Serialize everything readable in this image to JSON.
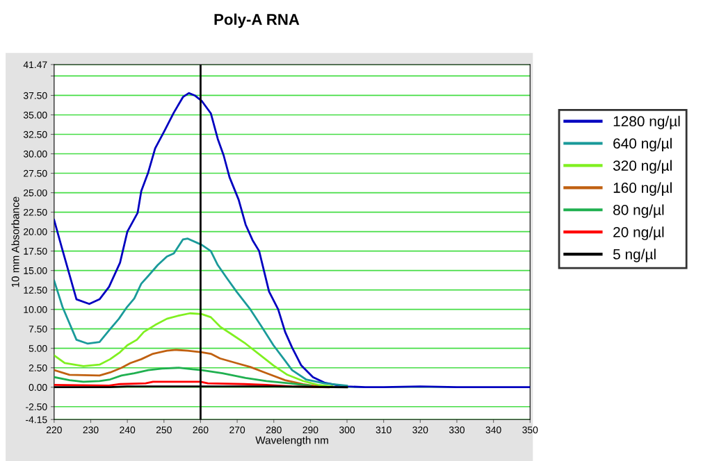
{
  "chart_data": {
    "type": "line",
    "title": "Poly-A RNA",
    "xlabel": "Wavelength nm",
    "ylabel": "10 mm Absorbance",
    "xlim": [
      220,
      350
    ],
    "xticks": [
      220,
      230,
      240,
      250,
      260,
      270,
      280,
      290,
      300,
      310,
      320,
      330,
      340,
      350
    ],
    "ylim": [
      -4.15,
      41.47
    ],
    "yticks": [
      {
        "value": -4.15,
        "label": "-4.15"
      },
      {
        "value": -2.5,
        "label": "-2.50"
      },
      {
        "value": 0,
        "label": "0.00"
      },
      {
        "value": 2.5,
        "label": "2.50"
      },
      {
        "value": 5,
        "label": "5.00"
      },
      {
        "value": 7.5,
        "label": "7.50"
      },
      {
        "value": 10,
        "label": "10.00"
      },
      {
        "value": 12.5,
        "label": "12.50"
      },
      {
        "value": 15,
        "label": "15.00"
      },
      {
        "value": 17.5,
        "label": "17.50"
      },
      {
        "value": 20,
        "label": "20.00"
      },
      {
        "value": 22.5,
        "label": "22.50"
      },
      {
        "value": 25,
        "label": "25.00"
      },
      {
        "value": 27.5,
        "label": "27.50"
      },
      {
        "value": 30,
        "label": "30.00"
      },
      {
        "value": 32.5,
        "label": "32.50"
      },
      {
        "value": 35,
        "label": "35.00"
      },
      {
        "value": 37.5,
        "label": "37.50"
      },
      {
        "value": 40,
        "label": null
      },
      {
        "value": 41.47,
        "label": "41.47"
      }
    ],
    "grid": "y",
    "legend": "right",
    "marker": "none",
    "line_style": "solid",
    "ref_lines": [
      {
        "axis": "x",
        "value": 260,
        "color": "#000000"
      }
    ],
    "series": [
      {
        "name": "1280 ng/µl",
        "color": "#0000c0",
        "x": [
          220,
          222,
          226.1,
          229.6,
          232.4,
          235,
          238,
          240,
          242.8,
          243.8,
          245.7,
          247.6,
          250.2,
          252.7,
          255.2,
          256.8,
          258.4,
          260.3,
          262.8,
          264.7,
          266.3,
          267.9,
          270.4,
          272.3,
          274.2,
          276,
          278.7,
          281.2,
          283.1,
          285,
          287.5,
          290.7,
          293.8,
          296.9,
          300,
          305,
          310,
          320,
          330,
          340,
          350
        ],
        "values": [
          21.5,
          18.1,
          11.3,
          10.7,
          11.3,
          12.9,
          16,
          20,
          22.4,
          25.2,
          27.6,
          30.7,
          33,
          35.3,
          37.3,
          37.8,
          37.5,
          36.8,
          35.2,
          31.9,
          29.8,
          27,
          24.1,
          20.9,
          18.9,
          17.5,
          12.3,
          10,
          7.1,
          5.1,
          2.8,
          1.3,
          0.6,
          0.3,
          0.1,
          0,
          0,
          0.1,
          0,
          0,
          0
        ]
      },
      {
        "name": "640 ng/µl",
        "color": "#1a9a9a",
        "x": [
          220,
          222.3,
          226.1,
          229.2,
          232.4,
          235,
          237.7,
          239.9,
          241.9,
          243.8,
          245.7,
          248.3,
          250.8,
          252.7,
          255.2,
          256.5,
          260.3,
          262.8,
          264.7,
          267.2,
          269.8,
          273.6,
          276.8,
          279.9,
          283.1,
          285,
          288.8,
          293.8,
          300
        ],
        "values": [
          13.7,
          10.3,
          6.1,
          5.6,
          5.8,
          7.3,
          8.8,
          10.3,
          11.4,
          13.3,
          14.3,
          15.7,
          16.8,
          17.2,
          19,
          19.1,
          18.3,
          17.5,
          15.7,
          14,
          12.3,
          10,
          7.7,
          5.4,
          3.4,
          2.2,
          1,
          0.5,
          0.2
        ]
      },
      {
        "name": "320 ng/µl",
        "color": "#80f020",
        "x": [
          220,
          222.9,
          228,
          232.4,
          235.3,
          238,
          240,
          242.6,
          244.5,
          247.6,
          250.8,
          254,
          257.1,
          260.3,
          262.8,
          265.3,
          268.5,
          272.3,
          276.1,
          279.9,
          283.7,
          288,
          292,
          296
        ],
        "values": [
          4.1,
          3.1,
          2.7,
          2.9,
          3.6,
          4.5,
          5.4,
          6.1,
          7.1,
          8,
          8.8,
          9.2,
          9.5,
          9.4,
          9,
          7.8,
          6.8,
          5.6,
          4.2,
          2.8,
          1.6,
          0.8,
          0.3,
          0.1
        ]
      },
      {
        "name": "160 ng/µl",
        "color": "#c06010",
        "x": [
          220,
          224.2,
          232.4,
          235.3,
          238.4,
          240.8,
          243.8,
          247,
          250.8,
          253.3,
          256.5,
          260.3,
          262.8,
          265.3,
          269.8,
          273.6,
          278,
          283.1,
          288,
          292
        ],
        "values": [
          2.2,
          1.6,
          1.5,
          1.9,
          2.5,
          3.1,
          3.6,
          4.3,
          4.7,
          4.8,
          4.7,
          4.5,
          4.3,
          3.7,
          3.1,
          2.6,
          1.8,
          0.9,
          0.4,
          0.1
        ]
      },
      {
        "name": "80 ng/µl",
        "color": "#20b050",
        "x": [
          220,
          224.2,
          228,
          232.4,
          235.3,
          238.4,
          241.9,
          245.7,
          249.5,
          254,
          257.8,
          260.3,
          266,
          272.3,
          278,
          284.3,
          290
        ],
        "values": [
          1.3,
          0.9,
          0.7,
          0.8,
          1,
          1.5,
          1.8,
          2.2,
          2.4,
          2.5,
          2.3,
          2.2,
          1.8,
          1.2,
          0.8,
          0.5,
          0.2
        ]
      },
      {
        "name": "20 ng/µl",
        "color": "#ff0000",
        "x": [
          220,
          235,
          238,
          245,
          247,
          260,
          262,
          272,
          278,
          285,
          295
        ],
        "values": [
          0.3,
          0.2,
          0.4,
          0.5,
          0.7,
          0.7,
          0.5,
          0.4,
          0.3,
          0.1,
          0
        ]
      },
      {
        "name": "5 ng/µl",
        "color": "#000000",
        "x": [
          220,
          235,
          240,
          260,
          280,
          300
        ],
        "values": [
          0,
          0,
          0.1,
          0.1,
          0.1,
          0
        ]
      }
    ]
  }
}
